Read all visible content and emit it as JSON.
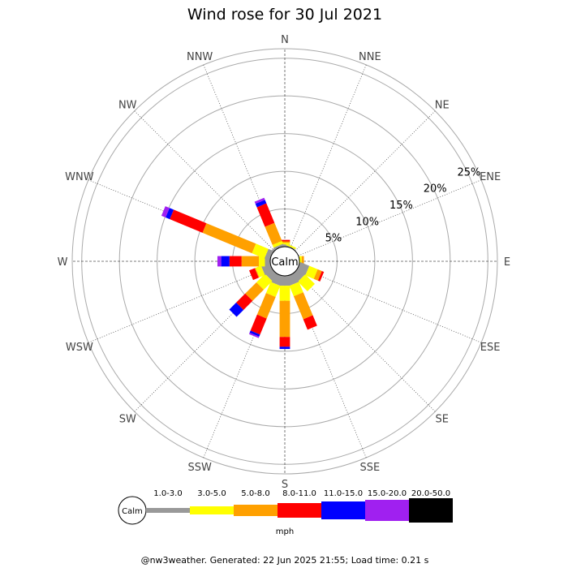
{
  "chart_data": {
    "type": "wind-rose",
    "title": "Wind rose for 30 Jul 2021",
    "directions": [
      "N",
      "NNE",
      "NE",
      "ENE",
      "E",
      "ESE",
      "SE",
      "SSE",
      "S",
      "SSW",
      "SW",
      "WSW",
      "W",
      "WNW",
      "NW",
      "NNW"
    ],
    "radial_ticks": [
      "5%",
      "10%",
      "15%",
      "20%",
      "25%"
    ],
    "radial_tick_values": [
      5,
      10,
      15,
      20,
      25
    ],
    "rmax": 28.2,
    "units": "mph",
    "calm_label": "Calm",
    "speed_bins": [
      {
        "label": "1.0-3.0",
        "color": "#999999"
      },
      {
        "label": "3.0-5.0",
        "color": "#ffff00"
      },
      {
        "label": "5.0-8.0",
        "color": "#ffa000"
      },
      {
        "label": "8.0-11.0",
        "color": "#ff0000"
      },
      {
        "label": "11.0-15.0",
        "color": "#0000ff"
      },
      {
        "label": "15.0-20.0",
        "color": "#a020f0"
      },
      {
        "label": "20.0-50.0",
        "color": "#000000"
      }
    ],
    "series_pct": [
      [
        0.3,
        0.2,
        0.2,
        0.2,
        0,
        0,
        0
      ],
      [
        0.1,
        0.2,
        0,
        0,
        0,
        0,
        0
      ],
      [
        0,
        0,
        0,
        0,
        0,
        0,
        0
      ],
      [
        0,
        0,
        0,
        0,
        0,
        0,
        0
      ],
      [
        0,
        0.3,
        0.3,
        0,
        0,
        0,
        0
      ],
      [
        1.3,
        1.2,
        0.6,
        0.3,
        0,
        0,
        0
      ],
      [
        1.2,
        1.8,
        0,
        0,
        0,
        0,
        0
      ],
      [
        1.3,
        1.5,
        3.3,
        1.5,
        0,
        0,
        0
      ],
      [
        1.3,
        2.0,
        4.8,
        1.3,
        0.3,
        0,
        0
      ],
      [
        1.3,
        1.6,
        3.1,
        2.3,
        0.3,
        0.2,
        0
      ],
      [
        1.1,
        1.6,
        2.1,
        1.7,
        1.3,
        0,
        0
      ],
      [
        1.2,
        0.8,
        0.1,
        0.8,
        0,
        0,
        0
      ],
      [
        0.7,
        0.8,
        2.3,
        1.6,
        1.1,
        0.5,
        0
      ],
      [
        0.7,
        1.8,
        7.1,
        4.7,
        0.6,
        0.6,
        0
      ],
      [
        0.3,
        0,
        0,
        0,
        0,
        0,
        0
      ],
      [
        0.3,
        0.4,
        2.6,
        2.8,
        0.5,
        0.3,
        0
      ]
    ]
  },
  "footer": "@nw3weather. Generated: 22 Jun 2025 21:55; Load time: 0.21 s"
}
